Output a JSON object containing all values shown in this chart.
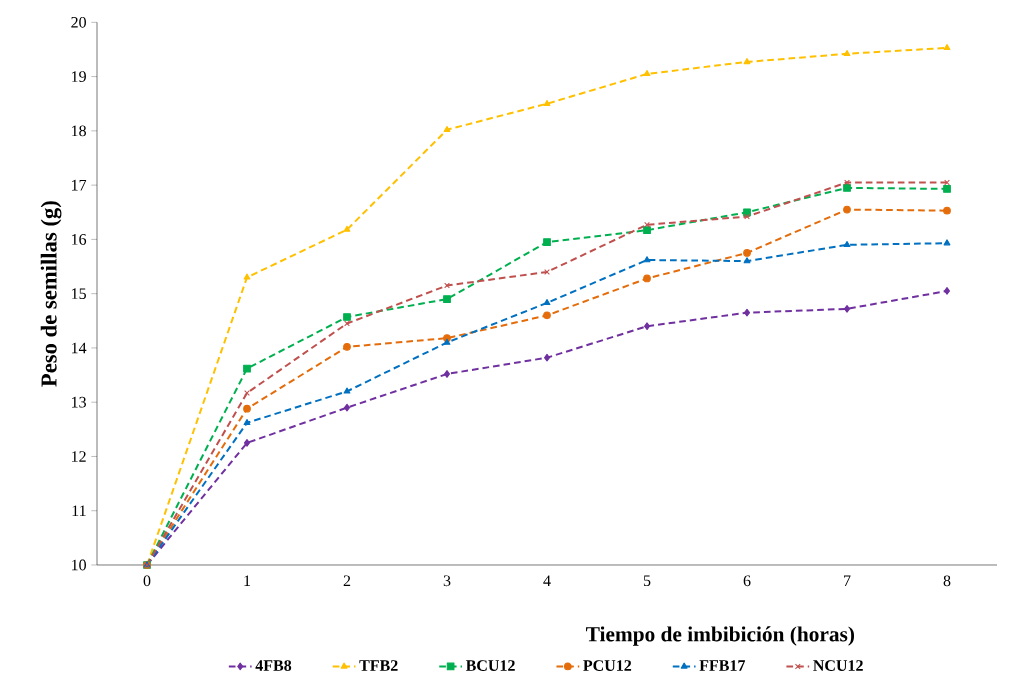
{
  "chart_data": {
    "type": "line",
    "xlabel": "Tiempo de imbibición (horas)",
    "ylabel": "Peso de semillas (g)",
    "categories": [
      "0",
      "1",
      "2",
      "3",
      "4",
      "5",
      "6",
      "7",
      "8"
    ],
    "ylim": [
      10,
      20
    ],
    "yticks": [
      10,
      11,
      12,
      13,
      14,
      15,
      16,
      17,
      18,
      19,
      20
    ],
    "grid": false,
    "legend": "bottom",
    "line_style": "dashed",
    "series": [
      {
        "name": "4FB8",
        "color": "#7030a0",
        "marker": "diamond",
        "values": [
          10.0,
          12.25,
          12.9,
          13.52,
          13.82,
          14.4,
          14.65,
          14.72,
          15.05
        ]
      },
      {
        "name": "TFB2",
        "color": "#ffc000",
        "marker": "triangle",
        "values": [
          10.0,
          15.3,
          16.18,
          18.02,
          18.5,
          19.05,
          19.27,
          19.42,
          19.53
        ]
      },
      {
        "name": "BCU12",
        "color": "#00b050",
        "marker": "square",
        "values": [
          10.0,
          13.62,
          14.57,
          14.9,
          15.95,
          16.17,
          16.5,
          16.95,
          16.93
        ]
      },
      {
        "name": "PCU12",
        "color": "#e46c0a",
        "marker": "circle",
        "values": [
          10.0,
          12.88,
          14.02,
          14.18,
          14.6,
          15.28,
          15.75,
          16.55,
          16.53
        ]
      },
      {
        "name": "FFB17",
        "color": "#0070c0",
        "marker": "triangle",
        "values": [
          10.0,
          12.62,
          13.2,
          14.1,
          14.83,
          15.62,
          15.6,
          15.9,
          15.93
        ]
      },
      {
        "name": "NCU12",
        "color": "#c0504d",
        "marker": "cross",
        "values": [
          10.0,
          13.17,
          14.45,
          15.15,
          15.4,
          16.27,
          16.42,
          17.05,
          17.05
        ]
      }
    ]
  }
}
